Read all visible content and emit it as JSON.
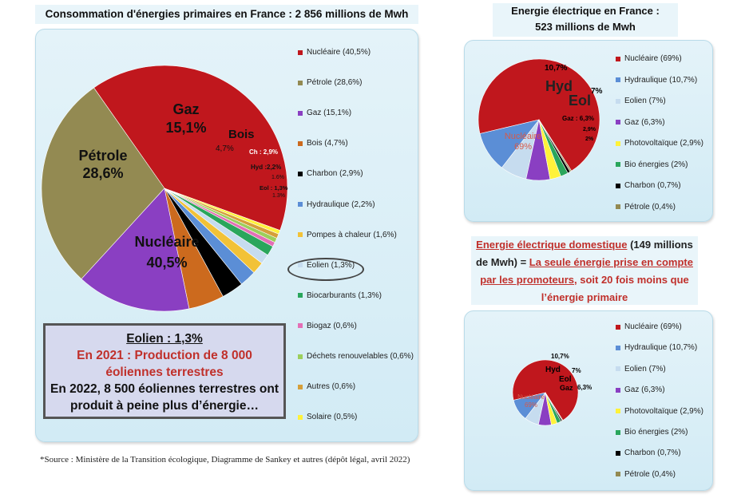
{
  "main_title": "Consommation d'énergies primaires en France : 2 856 millions de Mwh",
  "elec_title_line1": "Energie électrique en France :",
  "elec_title_line2": "523 millions de Mwh",
  "primary_chart": {
    "slice_labels": {
      "nucleaire_name": "Nucléaire",
      "nucleaire_pct": "40,5%",
      "petrole_name": "Pétrole",
      "petrole_pct": "28,6%",
      "gaz_name": "Gaz",
      "gaz_pct": "15,1%",
      "bois_name": "Bois",
      "bois_pct": "4,7%",
      "ch": "Ch : 2,9%",
      "hyd": "Hyd :2,2%",
      "pac": "1.6%",
      "eol": "Eol : 1,3%",
      "bio": "1.3%"
    }
  },
  "elec_chart": {
    "labels": {
      "hyd_pct": "10,7%",
      "hyd": "Hyd",
      "eol_pct": "7%",
      "eol": "Eol",
      "gaz": "Gaz : 6,3%",
      "pv": "2,9%",
      "bio": "2%",
      "nuc_name": "Nucléaire",
      "nuc_pct": "69%"
    }
  },
  "dom_chart": {
    "labels": {
      "hyd_pct": "10,7%",
      "hyd": "Hyd",
      "eol_pct": "7%",
      "eol": "Eol",
      "gaz": "Gaz",
      "gaz_pct": "6,3%",
      "nuc_name": "Nucléaire",
      "nuc_pct": "69%"
    }
  },
  "callout": {
    "line1": "Eolien : 1,3%",
    "line2": "En 2021 : Production de 8 000",
    "line3": "éoliennes terrestres",
    "line4": "En 2022, 8 500 éoliennes terrestres ont",
    "line5": "produit à peine plus d’énergie…"
  },
  "domestic_note": {
    "part1": "Energie électrique domestique",
    "part2": " (149 millions",
    "part3": "de Mwh) = ",
    "part4": "La seule énergie prise en compte",
    "part5": "par les promoteurs",
    "part6": ", soit 20 fois moins que",
    "part7": "l’énergie primaire"
  },
  "source": "*Source : Ministère de la Transition écologique, Diagramme de Sankey et autres (dépôt légal, avril 2022)",
  "chart_data": [
    {
      "type": "pie",
      "title": "Consommation d'énergies primaires en France : 2 856 millions de Mwh",
      "categories": [
        "Nucléaire",
        "Pétrole",
        "Gaz",
        "Bois",
        "Charbon",
        "Hydraulique",
        "Pompes à chaleur",
        "Eolien",
        "Biocarburants",
        "Biogaz",
        "Déchets renouvelables",
        "Autres",
        "Solaire"
      ],
      "values": [
        40.5,
        28.6,
        15.1,
        4.7,
        2.9,
        2.2,
        1.6,
        1.3,
        1.3,
        0.6,
        0.6,
        0.6,
        0.5
      ],
      "legend_labels": [
        "Nucléaire (40,5%)",
        "Pétrole (28,6%)",
        "Gaz (15,1%)",
        "Bois (4,7%)",
        "Charbon (2,9%)",
        "Hydraulique (2,2%)",
        "Pompes à chaleur (1,6%)",
        "Eolien (1,3%)",
        "Biocarburants (1,3%)",
        "Biogaz (0,6%)",
        "Déchets renouvelables (0,6%)",
        "Autres (0,6%)",
        "Solaire (0,5%)"
      ],
      "colors": [
        "#c0171d",
        "#938a52",
        "#8a3fc2",
        "#cc6a1e",
        "#000000",
        "#5b8ed6",
        "#f2c237",
        "#c6dcef",
        "#2aa65c",
        "#e46fb6",
        "#9ccf5c",
        "#d59f3a",
        "#fff23a"
      ],
      "legend_position": "right"
    },
    {
      "type": "pie",
      "title": "Energie électrique en France : 523 millions de Mwh",
      "categories": [
        "Nucléaire",
        "Hydraulique",
        "Eolien",
        "Gaz",
        "Photovoltaïque",
        "Bio énergies",
        "Charbon",
        "Pétrole"
      ],
      "values": [
        69,
        10.7,
        7,
        6.3,
        2.9,
        2,
        0.7,
        0.4
      ],
      "legend_labels": [
        "Nucléaire (69%)",
        "Hydraulique (10,7%)",
        "Eolien (7%)",
        "Gaz (6,3%)",
        "Photovoltaïque (2,9%)",
        "Bio énergies (2%)",
        "Charbon (0,7%)",
        "Pétrole (0,4%)"
      ],
      "colors": [
        "#c0171d",
        "#5b8ed6",
        "#c6dcef",
        "#8a3fc2",
        "#fff23a",
        "#2aa65c",
        "#000000",
        "#938a52"
      ],
      "legend_position": "right"
    },
    {
      "type": "pie",
      "categories": [
        "Nucléaire",
        "Hydraulique",
        "Eolien",
        "Gaz",
        "Photovoltaïque",
        "Bio énergies",
        "Charbon",
        "Pétrole"
      ],
      "values": [
        69,
        10.7,
        7,
        6.3,
        2.9,
        2,
        0.7,
        0.4
      ],
      "legend_labels": [
        "Nucléaire (69%)",
        "Hydraulique (10,7%)",
        "Eolien (7%)",
        "Gaz (6,3%)",
        "Photovoltaïque (2,9%)",
        "Bio énergies (2%)",
        "Charbon (0,7%)",
        "Pétrole (0,4%)"
      ],
      "colors": [
        "#c0171d",
        "#5b8ed6",
        "#c6dcef",
        "#8a3fc2",
        "#fff23a",
        "#2aa65c",
        "#000000",
        "#938a52"
      ],
      "legend_position": "right"
    }
  ]
}
